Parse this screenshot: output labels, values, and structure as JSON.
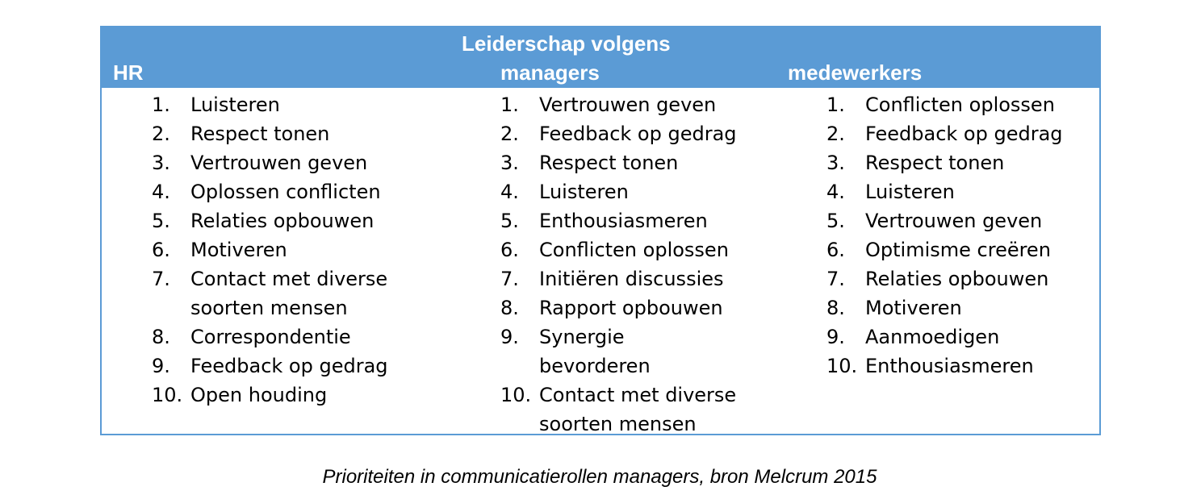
{
  "header": {
    "title": "Leiderschap volgens",
    "col_hr": "HR",
    "col_managers": "managers",
    "col_medewerkers": "medewerkers"
  },
  "columns": {
    "hr": [
      {
        "num": "1.",
        "text": "Luisteren"
      },
      {
        "num": "2.",
        "text": "Respect tonen"
      },
      {
        "num": "3.",
        "text": "Vertrouwen geven"
      },
      {
        "num": "4.",
        "text": "Oplossen conflicten"
      },
      {
        "num": "5.",
        "text": "Relaties opbouwen"
      },
      {
        "num": "6.",
        "text": "Motiveren"
      },
      {
        "num": "7.",
        "text": "Contact met diverse soorten mensen"
      },
      {
        "num": "8.",
        "text": "Correspondentie"
      },
      {
        "num": "9.",
        "text": "Feedback op gedrag"
      },
      {
        "num": "10.",
        "text": "Open houding"
      }
    ],
    "managers": [
      {
        "num": "1.",
        "text": "Vertrouwen geven"
      },
      {
        "num": "2.",
        "text": "Feedback op gedrag"
      },
      {
        "num": "3.",
        "text": "Respect tonen"
      },
      {
        "num": "4.",
        "text": "Luisteren"
      },
      {
        "num": "5.",
        "text": "Enthousiasmeren"
      },
      {
        "num": "6.",
        "text": "Conflicten oplossen"
      },
      {
        "num": "7.",
        "text": "Initiëren discussies"
      },
      {
        "num": "8.",
        "text": "Rapport opbouwen"
      },
      {
        "num": "9.",
        "text": "Synergie bevorderen"
      },
      {
        "num": "10.",
        "text": "Contact met diverse soorten mensen"
      }
    ],
    "medewerkers": [
      {
        "num": "1.",
        "text": "Conflicten oplossen"
      },
      {
        "num": "2.",
        "text": "Feedback op gedrag"
      },
      {
        "num": "3.",
        "text": "Respect tonen"
      },
      {
        "num": "4.",
        "text": "Luisteren"
      },
      {
        "num": "5.",
        "text": "Vertrouwen geven"
      },
      {
        "num": "6.",
        "text": "Optimisme creëren"
      },
      {
        "num": "7.",
        "text": "Relaties opbouwen"
      },
      {
        "num": "8.",
        "text": "Motiveren"
      },
      {
        "num": "9.",
        "text": "Aanmoedigen"
      },
      {
        "num": "10.",
        "text": "Enthousiasmeren"
      }
    ]
  },
  "caption": "Prioriteiten in communicatierollen managers, bron Melcrum 2015",
  "colors": {
    "header_bg": "#5b9bd5",
    "header_text": "#ffffff",
    "border": "#5b9bd5"
  }
}
